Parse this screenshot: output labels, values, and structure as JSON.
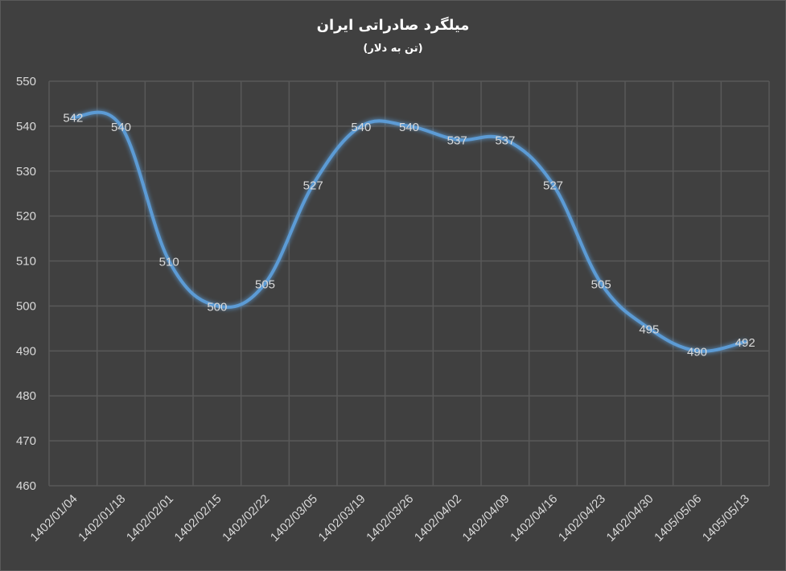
{
  "chart_data": {
    "type": "line",
    "title": "میلگرد صادراتی ایران",
    "subtitle": "(تن به دلار)",
    "categories": [
      "1402/01/04",
      "1402/01/18",
      "1402/02/01",
      "1402/02/15",
      "1402/02/22",
      "1402/03/05",
      "1402/03/19",
      "1402/03/26",
      "1402/04/02",
      "1402/04/09",
      "1402/04/16",
      "1402/04/23",
      "1402/04/30",
      "1405/05/06",
      "1405/05/13"
    ],
    "values": [
      542,
      540,
      510,
      500,
      505,
      527,
      540,
      540,
      537,
      537,
      527,
      505,
      495,
      490,
      492
    ],
    "yticks": [
      460,
      470,
      480,
      490,
      500,
      510,
      520,
      530,
      540,
      550
    ],
    "ylim": [
      460,
      550
    ],
    "xlabel": "",
    "ylabel": "",
    "grid": true,
    "data_labels": true,
    "colors": {
      "background": "#404040",
      "line": "#5b9bd5",
      "grid": "#595959",
      "text": "#d9d9d9"
    }
  }
}
